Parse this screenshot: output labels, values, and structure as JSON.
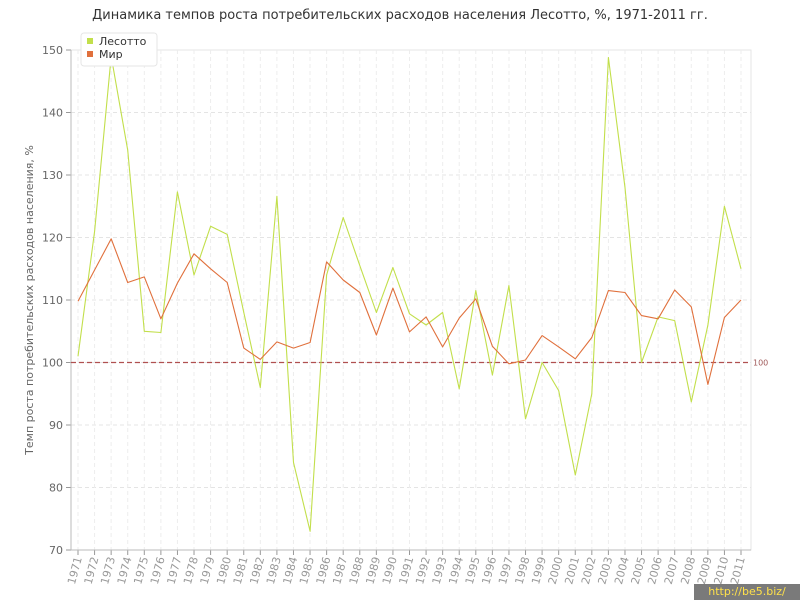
{
  "chart_data": {
    "type": "line",
    "title": "Динамика темпов роста потребительских расходов населения Лесотто, %, 1971-2011 гг.",
    "ylabel": "Темп роста потребительских расходов населения, %",
    "xlabel": "",
    "ylim": [
      70,
      150
    ],
    "yticks": [
      70,
      80,
      90,
      100,
      110,
      120,
      130,
      140,
      150
    ],
    "grid": true,
    "legend": "top-left",
    "reference_line": {
      "value": 100,
      "label": "100",
      "color": "#b05050"
    },
    "categories": [
      "1971",
      "1972",
      "1973",
      "1974",
      "1975",
      "1976",
      "1977",
      "1978",
      "1979",
      "1980",
      "1981",
      "1982",
      "1983",
      "1984",
      "1985",
      "1986",
      "1987",
      "1988",
      "1989",
      "1990",
      "1991",
      "1992",
      "1993",
      "1994",
      "1995",
      "1996",
      "1997",
      "1998",
      "1999",
      "2000",
      "2001",
      "2002",
      "2003",
      "2004",
      "2005",
      "2006",
      "2007",
      "2008",
      "2009",
      "2010",
      "2011"
    ],
    "series": [
      {
        "name": "Лесотто",
        "color": "#c2df4b",
        "values": [
          101,
          121,
          149,
          134,
          105,
          104.8,
          127.3,
          114,
          121.8,
          120.5,
          108,
          96,
          126.6,
          84,
          73,
          114,
          123.2,
          115.5,
          108,
          115.2,
          107.8,
          106,
          108,
          95.8,
          111.5,
          98,
          112.3,
          91,
          100,
          95.5,
          82,
          95,
          148.8,
          128,
          100,
          107.3,
          106.7,
          93.7,
          106,
          125,
          115
        ]
      },
      {
        "name": "Мир",
        "color": "#e0703c",
        "values": [
          109.8,
          114.8,
          119.8,
          112.8,
          113.7,
          107,
          112.7,
          117.4,
          115,
          112.8,
          102.3,
          100.5,
          103.3,
          102.3,
          103.2,
          116.1,
          113.2,
          111.2,
          104.4,
          111.9,
          104.9,
          107.3,
          102.5,
          107.1,
          110.2,
          102.6,
          99.8,
          100.4,
          104.3,
          102.5,
          100.6,
          104,
          111.5,
          111.2,
          107.5,
          107,
          111.6,
          108.9,
          96.5,
          107.2,
          110
        ]
      }
    ]
  },
  "watermark": "http://be5.biz/"
}
